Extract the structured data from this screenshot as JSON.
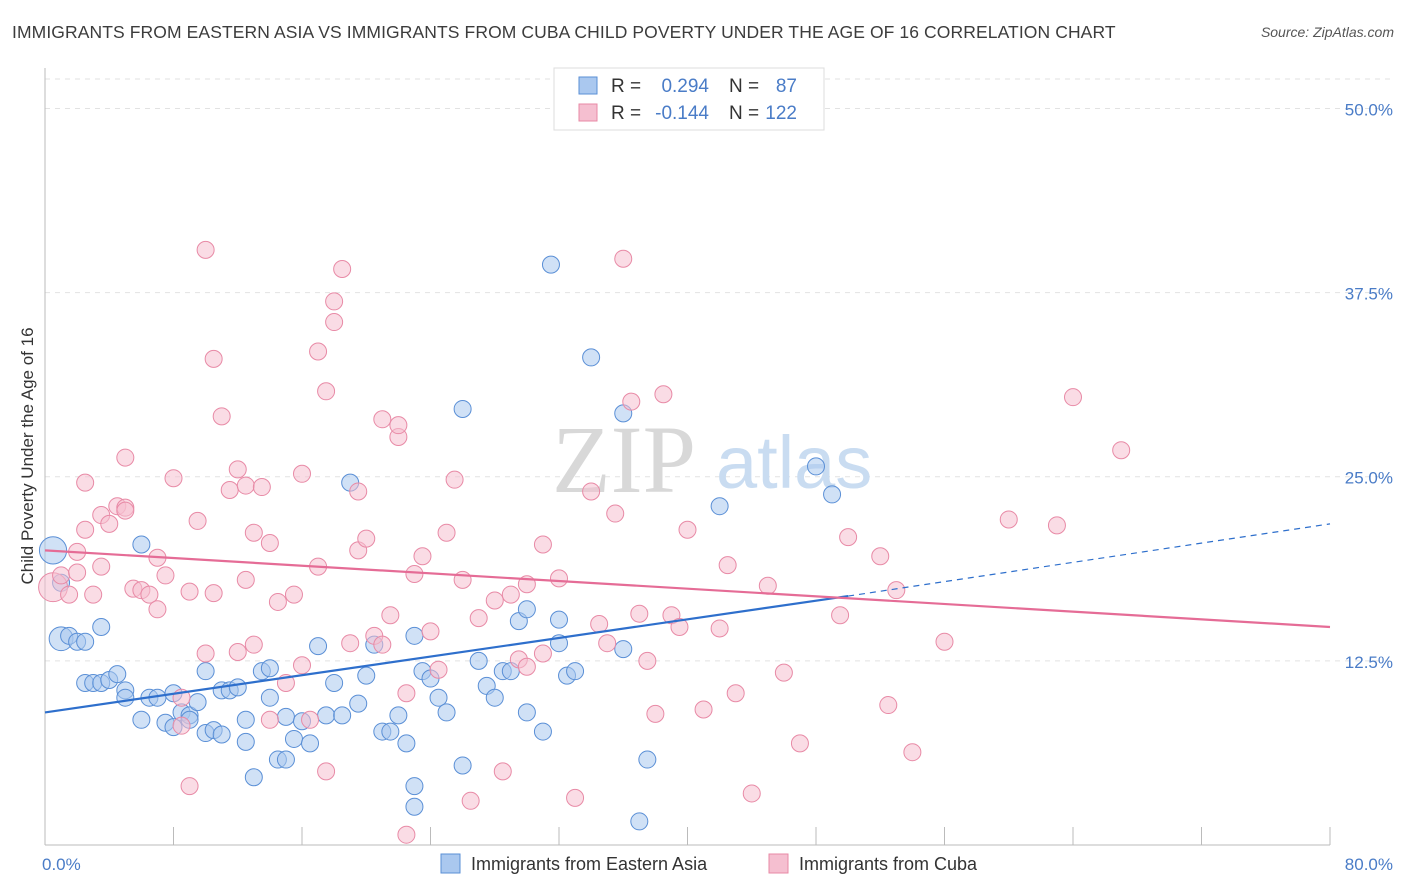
{
  "title": "IMMIGRANTS FROM EASTERN ASIA VS IMMIGRANTS FROM CUBA CHILD POVERTY UNDER THE AGE OF 16 CORRELATION CHART",
  "source": "Source: ZipAtlas.com",
  "watermark": {
    "zip": "ZIP",
    "atlas": "atlas"
  },
  "stats": [
    {
      "r_label": "R =",
      "r_value": "0.294",
      "n_label": "N =",
      "n_value": "87",
      "color": "#4a7cc7"
    },
    {
      "r_label": "R =",
      "r_value": "-0.144",
      "n_label": "N =",
      "n_value": "122",
      "color": "#4a7cc7"
    }
  ],
  "chart_data": {
    "type": "scatter",
    "title": "IMMIGRANTS FROM EASTERN ASIA VS IMMIGRANTS FROM CUBA CHILD POVERTY UNDER THE AGE OF 16 CORRELATION CHART",
    "xlabel": "",
    "ylabel": "Child Poverty Under the Age of 16",
    "xlim": [
      0,
      80
    ],
    "ylim": [
      0,
      52
    ],
    "x_tick_labels": [
      "0.0%",
      "80.0%"
    ],
    "y_ticks": [
      12.5,
      25.0,
      37.5,
      50.0
    ],
    "y_tick_labels": [
      "12.5%",
      "25.0%",
      "37.5%",
      "50.0%"
    ],
    "grid": true,
    "series": [
      {
        "name": "Immigrants from Eastern Asia",
        "fill": "#aac8ef",
        "stroke": "#5a8fd6",
        "line_color": "#2e6fcc",
        "trend": {
          "x0": 0,
          "y0": 9.0,
          "x1": 50,
          "y1": 16.9,
          "dash_to_x": 80,
          "dash_to_y": 21.8
        },
        "points": [
          [
            0.5,
            20.0,
            1.6
          ],
          [
            1,
            17.8,
            1
          ],
          [
            1,
            14.0,
            1.4
          ],
          [
            1.5,
            14.2,
            1
          ],
          [
            2,
            13.8,
            1
          ],
          [
            2.5,
            13.8,
            1
          ],
          [
            3.5,
            14.8,
            1
          ],
          [
            2.5,
            11.0,
            1
          ],
          [
            3,
            11.0,
            1
          ],
          [
            3.5,
            11.0,
            1
          ],
          [
            4,
            11.2,
            1
          ],
          [
            4.5,
            11.6,
            1
          ],
          [
            5,
            10.5,
            1
          ],
          [
            5,
            10.0,
            1
          ],
          [
            6,
            20.4,
            1
          ],
          [
            6,
            8.5,
            1
          ],
          [
            6.5,
            10.0,
            1
          ],
          [
            7,
            10.0,
            1
          ],
          [
            7.5,
            8.3,
            1
          ],
          [
            8,
            8.0,
            1
          ],
          [
            8,
            10.3,
            1
          ],
          [
            8.5,
            9.0,
            1
          ],
          [
            9,
            8.8,
            1
          ],
          [
            9,
            8.5,
            1
          ],
          [
            9.5,
            9.7,
            1
          ],
          [
            10,
            7.6,
            1
          ],
          [
            10,
            11.8,
            1
          ],
          [
            10.5,
            7.8,
            1
          ],
          [
            11,
            7.5,
            1
          ],
          [
            11,
            10.5,
            1
          ],
          [
            11.5,
            10.5,
            1
          ],
          [
            12,
            10.7,
            1
          ],
          [
            12.5,
            7.0,
            1
          ],
          [
            12.5,
            8.5,
            1
          ],
          [
            13,
            4.6,
            1
          ],
          [
            13.5,
            11.8,
            1
          ],
          [
            14,
            12.0,
            1
          ],
          [
            14,
            10.0,
            1
          ],
          [
            14.5,
            5.8,
            1
          ],
          [
            15,
            5.8,
            1
          ],
          [
            15,
            8.7,
            1
          ],
          [
            15.5,
            7.2,
            1
          ],
          [
            16,
            8.4,
            1
          ],
          [
            16.5,
            6.9,
            1
          ],
          [
            17,
            13.5,
            1
          ],
          [
            17.5,
            8.8,
            1
          ],
          [
            18,
            11.0,
            1
          ],
          [
            18.5,
            8.8,
            1
          ],
          [
            19,
            24.6,
            1
          ],
          [
            19.5,
            9.6,
            1
          ],
          [
            20,
            11.5,
            1
          ],
          [
            20.5,
            13.6,
            1
          ],
          [
            21,
            7.7,
            1
          ],
          [
            21.5,
            7.7,
            1
          ],
          [
            22,
            8.8,
            1
          ],
          [
            22.5,
            6.9,
            1
          ],
          [
            23,
            14.2,
            1
          ],
          [
            23,
            4.0,
            1
          ],
          [
            23.5,
            11.8,
            1
          ],
          [
            23,
            2.6,
            1
          ],
          [
            24,
            11.3,
            1
          ],
          [
            24.5,
            10.0,
            1
          ],
          [
            25,
            9.0,
            1
          ],
          [
            26,
            29.6,
            1
          ],
          [
            26,
            5.4,
            1
          ],
          [
            27,
            12.5,
            1
          ],
          [
            27.5,
            10.8,
            1
          ],
          [
            28,
            10.0,
            1
          ],
          [
            28.5,
            11.8,
            1
          ],
          [
            29,
            11.8,
            1
          ],
          [
            29.5,
            15.2,
            1
          ],
          [
            30,
            9.0,
            1
          ],
          [
            30,
            16.0,
            1
          ],
          [
            31,
            7.7,
            1
          ],
          [
            31.5,
            39.4,
            1
          ],
          [
            32,
            15.3,
            1
          ],
          [
            32,
            13.7,
            1
          ],
          [
            32.5,
            11.5,
            1
          ],
          [
            33,
            11.8,
            1
          ],
          [
            34,
            33.1,
            1
          ],
          [
            36,
            29.3,
            1
          ],
          [
            36,
            13.3,
            1
          ],
          [
            37,
            1.6,
            1
          ],
          [
            37.5,
            5.8,
            1
          ],
          [
            42,
            23.0,
            1
          ],
          [
            48,
            25.7,
            1
          ],
          [
            49,
            23.8,
            1
          ]
        ]
      },
      {
        "name": "Immigrants from Cuba",
        "fill": "#f5bfd0",
        "stroke": "#e88aa6",
        "line_color": "#e56c96",
        "trend": {
          "x0": 0,
          "y0": 20.0,
          "x1": 80,
          "y1": 14.8
        },
        "points": [
          [
            0.5,
            17.5,
            1.7
          ],
          [
            1,
            18.3,
            1
          ],
          [
            1.5,
            17.0,
            1
          ],
          [
            2,
            18.5,
            1
          ],
          [
            2,
            19.9,
            1
          ],
          [
            2.5,
            21.4,
            1
          ],
          [
            2.5,
            24.6,
            1
          ],
          [
            3,
            17.0,
            1
          ],
          [
            3.5,
            22.4,
            1
          ],
          [
            3.5,
            18.9,
            1
          ],
          [
            4,
            21.8,
            1
          ],
          [
            4.5,
            23.0,
            1
          ],
          [
            5,
            22.9,
            1
          ],
          [
            5,
            26.3,
            1
          ],
          [
            5,
            22.7,
            1
          ],
          [
            5.5,
            17.4,
            1
          ],
          [
            6,
            17.3,
            1
          ],
          [
            6.5,
            17.0,
            1
          ],
          [
            7,
            19.5,
            1
          ],
          [
            7,
            16.0,
            1
          ],
          [
            7.5,
            18.3,
            1
          ],
          [
            8,
            24.9,
            1
          ],
          [
            8.5,
            10.0,
            1
          ],
          [
            8.5,
            8.1,
            1
          ],
          [
            9,
            17.2,
            1
          ],
          [
            9,
            4.0,
            1
          ],
          [
            9.5,
            22.0,
            1
          ],
          [
            10,
            40.4,
            1
          ],
          [
            10,
            13.0,
            1
          ],
          [
            10.5,
            33.0,
            1
          ],
          [
            10.5,
            17.1,
            1
          ],
          [
            11,
            29.1,
            1
          ],
          [
            11.5,
            24.1,
            1
          ],
          [
            12,
            25.5,
            1
          ],
          [
            12,
            13.1,
            1
          ],
          [
            12.5,
            24.4,
            1
          ],
          [
            12.5,
            18.0,
            1
          ],
          [
            13,
            21.2,
            1
          ],
          [
            13,
            13.6,
            1
          ],
          [
            13.5,
            24.3,
            1
          ],
          [
            14,
            20.5,
            1
          ],
          [
            14,
            8.5,
            1
          ],
          [
            14.5,
            16.5,
            1
          ],
          [
            15,
            11.0,
            1
          ],
          [
            15.5,
            17.0,
            1
          ],
          [
            16,
            12.2,
            1
          ],
          [
            16,
            25.2,
            1
          ],
          [
            16.5,
            8.5,
            1
          ],
          [
            17,
            33.5,
            1
          ],
          [
            17,
            18.9,
            1
          ],
          [
            17.5,
            30.8,
            1
          ],
          [
            17.5,
            5.0,
            1
          ],
          [
            18,
            36.9,
            1
          ],
          [
            18,
            35.5,
            1
          ],
          [
            18.5,
            39.1,
            1
          ],
          [
            19,
            13.7,
            1
          ],
          [
            19.5,
            24.0,
            1
          ],
          [
            19.5,
            20.0,
            1
          ],
          [
            20,
            20.8,
            1
          ],
          [
            20.5,
            14.2,
            1
          ],
          [
            21,
            28.9,
            1
          ],
          [
            21,
            13.6,
            1
          ],
          [
            21.5,
            15.6,
            1
          ],
          [
            22,
            27.7,
            1
          ],
          [
            22,
            28.5,
            1
          ],
          [
            22.5,
            10.3,
            1
          ],
          [
            23,
            18.4,
            1
          ],
          [
            23.5,
            19.6,
            1
          ],
          [
            24,
            14.5,
            1
          ],
          [
            24.5,
            11.9,
            1
          ],
          [
            25,
            21.2,
            1
          ],
          [
            25.5,
            24.8,
            1
          ],
          [
            26,
            18.0,
            1
          ],
          [
            26.5,
            3.0,
            1
          ],
          [
            27,
            15.4,
            1
          ],
          [
            28,
            16.6,
            1
          ],
          [
            28.5,
            5.0,
            1
          ],
          [
            29,
            17.0,
            1
          ],
          [
            29.5,
            12.6,
            1
          ],
          [
            30,
            17.7,
            1
          ],
          [
            30,
            12.1,
            1
          ],
          [
            31,
            20.4,
            1
          ],
          [
            31,
            13.0,
            1
          ],
          [
            32,
            18.1,
            1
          ],
          [
            33,
            3.2,
            1
          ],
          [
            34,
            24.0,
            1
          ],
          [
            34.5,
            15.0,
            1
          ],
          [
            35,
            13.7,
            1
          ],
          [
            35.5,
            22.5,
            1
          ],
          [
            36,
            39.8,
            1
          ],
          [
            36.5,
            30.1,
            1
          ],
          [
            37,
            15.7,
            1
          ],
          [
            37.5,
            12.5,
            1
          ],
          [
            38,
            8.9,
            1
          ],
          [
            38.5,
            30.6,
            1
          ],
          [
            39,
            15.6,
            1
          ],
          [
            39.5,
            14.8,
            1
          ],
          [
            40,
            21.4,
            1
          ],
          [
            41,
            9.2,
            1
          ],
          [
            42,
            14.7,
            1
          ],
          [
            42.5,
            19.0,
            1
          ],
          [
            43,
            10.3,
            1
          ],
          [
            44,
            3.5,
            1
          ],
          [
            45,
            17.6,
            1
          ],
          [
            46,
            11.7,
            1
          ],
          [
            47,
            6.9,
            1
          ],
          [
            49.5,
            15.6,
            1
          ],
          [
            50,
            20.9,
            1
          ],
          [
            52,
            19.6,
            1
          ],
          [
            53,
            17.3,
            1
          ],
          [
            52.5,
            9.5,
            1
          ],
          [
            54,
            6.3,
            1
          ],
          [
            56,
            13.8,
            1
          ],
          [
            60,
            22.1,
            1
          ],
          [
            63,
            21.7,
            1
          ],
          [
            64,
            30.4,
            1
          ],
          [
            67,
            26.8,
            1
          ],
          [
            22.5,
            0.7,
            1
          ]
        ]
      }
    ]
  },
  "legend": [
    {
      "label": "Immigrants from Eastern Asia",
      "fill": "#aac8ef",
      "stroke": "#5a8fd6"
    },
    {
      "label": "Immigrants from Cuba",
      "fill": "#f5bfd0",
      "stroke": "#e88aa6"
    }
  ]
}
